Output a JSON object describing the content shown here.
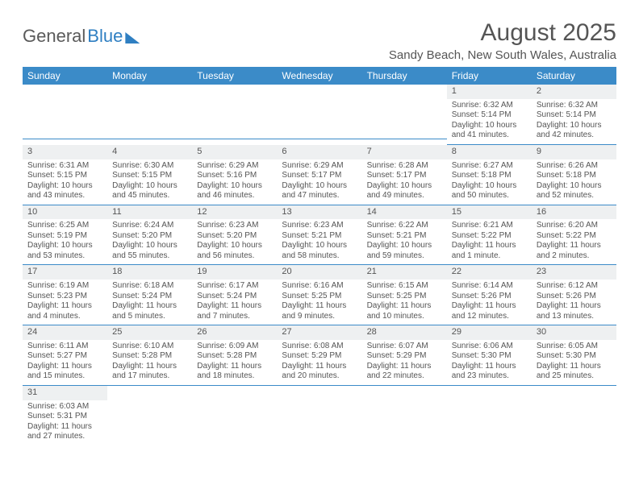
{
  "logo": {
    "text1": "General",
    "text2": "Blue"
  },
  "title": "August 2025",
  "location": "Sandy Beach, New South Wales, Australia",
  "colors": {
    "header_bg": "#3b8bc8",
    "header_fg": "#ffffff",
    "daynum_bg": "#eef0f1",
    "rule": "#3b8bc8",
    "text": "#555555"
  },
  "day_labels": [
    "Sunday",
    "Monday",
    "Tuesday",
    "Wednesday",
    "Thursday",
    "Friday",
    "Saturday"
  ],
  "weeks": [
    [
      null,
      null,
      null,
      null,
      null,
      {
        "n": "1",
        "sr": "Sunrise: 6:32 AM",
        "ss": "Sunset: 5:14 PM",
        "dl": "Daylight: 10 hours and 41 minutes."
      },
      {
        "n": "2",
        "sr": "Sunrise: 6:32 AM",
        "ss": "Sunset: 5:14 PM",
        "dl": "Daylight: 10 hours and 42 minutes."
      }
    ],
    [
      {
        "n": "3",
        "sr": "Sunrise: 6:31 AM",
        "ss": "Sunset: 5:15 PM",
        "dl": "Daylight: 10 hours and 43 minutes."
      },
      {
        "n": "4",
        "sr": "Sunrise: 6:30 AM",
        "ss": "Sunset: 5:15 PM",
        "dl": "Daylight: 10 hours and 45 minutes."
      },
      {
        "n": "5",
        "sr": "Sunrise: 6:29 AM",
        "ss": "Sunset: 5:16 PM",
        "dl": "Daylight: 10 hours and 46 minutes."
      },
      {
        "n": "6",
        "sr": "Sunrise: 6:29 AM",
        "ss": "Sunset: 5:17 PM",
        "dl": "Daylight: 10 hours and 47 minutes."
      },
      {
        "n": "7",
        "sr": "Sunrise: 6:28 AM",
        "ss": "Sunset: 5:17 PM",
        "dl": "Daylight: 10 hours and 49 minutes."
      },
      {
        "n": "8",
        "sr": "Sunrise: 6:27 AM",
        "ss": "Sunset: 5:18 PM",
        "dl": "Daylight: 10 hours and 50 minutes."
      },
      {
        "n": "9",
        "sr": "Sunrise: 6:26 AM",
        "ss": "Sunset: 5:18 PM",
        "dl": "Daylight: 10 hours and 52 minutes."
      }
    ],
    [
      {
        "n": "10",
        "sr": "Sunrise: 6:25 AM",
        "ss": "Sunset: 5:19 PM",
        "dl": "Daylight: 10 hours and 53 minutes."
      },
      {
        "n": "11",
        "sr": "Sunrise: 6:24 AM",
        "ss": "Sunset: 5:20 PM",
        "dl": "Daylight: 10 hours and 55 minutes."
      },
      {
        "n": "12",
        "sr": "Sunrise: 6:23 AM",
        "ss": "Sunset: 5:20 PM",
        "dl": "Daylight: 10 hours and 56 minutes."
      },
      {
        "n": "13",
        "sr": "Sunrise: 6:23 AM",
        "ss": "Sunset: 5:21 PM",
        "dl": "Daylight: 10 hours and 58 minutes."
      },
      {
        "n": "14",
        "sr": "Sunrise: 6:22 AM",
        "ss": "Sunset: 5:21 PM",
        "dl": "Daylight: 10 hours and 59 minutes."
      },
      {
        "n": "15",
        "sr": "Sunrise: 6:21 AM",
        "ss": "Sunset: 5:22 PM",
        "dl": "Daylight: 11 hours and 1 minute."
      },
      {
        "n": "16",
        "sr": "Sunrise: 6:20 AM",
        "ss": "Sunset: 5:22 PM",
        "dl": "Daylight: 11 hours and 2 minutes."
      }
    ],
    [
      {
        "n": "17",
        "sr": "Sunrise: 6:19 AM",
        "ss": "Sunset: 5:23 PM",
        "dl": "Daylight: 11 hours and 4 minutes."
      },
      {
        "n": "18",
        "sr": "Sunrise: 6:18 AM",
        "ss": "Sunset: 5:24 PM",
        "dl": "Daylight: 11 hours and 5 minutes."
      },
      {
        "n": "19",
        "sr": "Sunrise: 6:17 AM",
        "ss": "Sunset: 5:24 PM",
        "dl": "Daylight: 11 hours and 7 minutes."
      },
      {
        "n": "20",
        "sr": "Sunrise: 6:16 AM",
        "ss": "Sunset: 5:25 PM",
        "dl": "Daylight: 11 hours and 9 minutes."
      },
      {
        "n": "21",
        "sr": "Sunrise: 6:15 AM",
        "ss": "Sunset: 5:25 PM",
        "dl": "Daylight: 11 hours and 10 minutes."
      },
      {
        "n": "22",
        "sr": "Sunrise: 6:14 AM",
        "ss": "Sunset: 5:26 PM",
        "dl": "Daylight: 11 hours and 12 minutes."
      },
      {
        "n": "23",
        "sr": "Sunrise: 6:12 AM",
        "ss": "Sunset: 5:26 PM",
        "dl": "Daylight: 11 hours and 13 minutes."
      }
    ],
    [
      {
        "n": "24",
        "sr": "Sunrise: 6:11 AM",
        "ss": "Sunset: 5:27 PM",
        "dl": "Daylight: 11 hours and 15 minutes."
      },
      {
        "n": "25",
        "sr": "Sunrise: 6:10 AM",
        "ss": "Sunset: 5:28 PM",
        "dl": "Daylight: 11 hours and 17 minutes."
      },
      {
        "n": "26",
        "sr": "Sunrise: 6:09 AM",
        "ss": "Sunset: 5:28 PM",
        "dl": "Daylight: 11 hours and 18 minutes."
      },
      {
        "n": "27",
        "sr": "Sunrise: 6:08 AM",
        "ss": "Sunset: 5:29 PM",
        "dl": "Daylight: 11 hours and 20 minutes."
      },
      {
        "n": "28",
        "sr": "Sunrise: 6:07 AM",
        "ss": "Sunset: 5:29 PM",
        "dl": "Daylight: 11 hours and 22 minutes."
      },
      {
        "n": "29",
        "sr": "Sunrise: 6:06 AM",
        "ss": "Sunset: 5:30 PM",
        "dl": "Daylight: 11 hours and 23 minutes."
      },
      {
        "n": "30",
        "sr": "Sunrise: 6:05 AM",
        "ss": "Sunset: 5:30 PM",
        "dl": "Daylight: 11 hours and 25 minutes."
      }
    ],
    [
      {
        "n": "31",
        "sr": "Sunrise: 6:03 AM",
        "ss": "Sunset: 5:31 PM",
        "dl": "Daylight: 11 hours and 27 minutes."
      },
      null,
      null,
      null,
      null,
      null,
      null
    ]
  ]
}
